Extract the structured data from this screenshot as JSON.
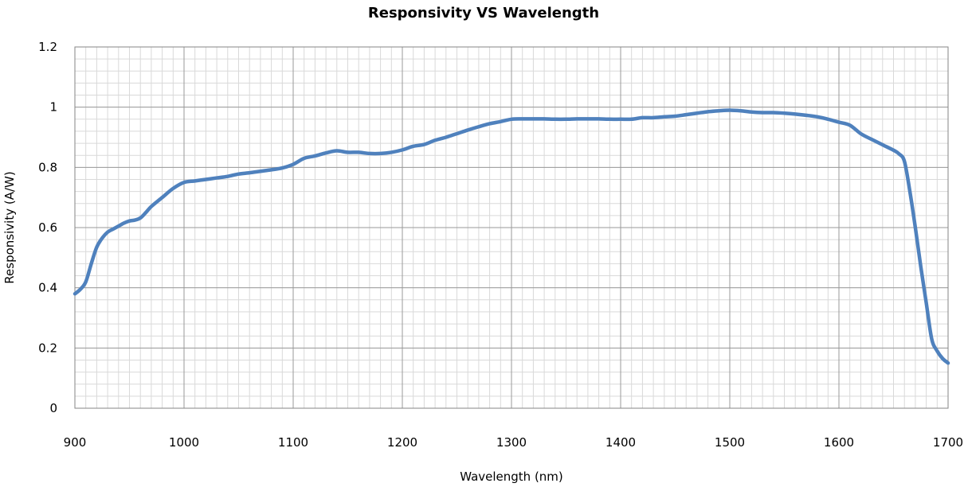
{
  "chart_data": {
    "type": "line",
    "title": "Responsivity VS Wavelength",
    "xlabel": "Wavelength (nm)",
    "ylabel": "Responsivity (A/W)",
    "xlim": [
      900,
      1700
    ],
    "ylim": [
      0,
      1.2
    ],
    "x_ticks": [
      900,
      1000,
      1100,
      1200,
      1300,
      1400,
      1500,
      1600,
      1700
    ],
    "y_ticks": [
      0,
      0.2,
      0.4,
      0.6,
      0.8,
      1,
      1.2
    ],
    "y_tick_labels": [
      "0",
      "0.2",
      "0.4",
      "0.6",
      "0.8",
      "1",
      "1.2"
    ],
    "x_minor_step": 10,
    "y_minor_step": 0.04,
    "grid": true,
    "legend": "none",
    "series": [
      {
        "color": "#4f81bd",
        "x": [
          900,
          905,
          910,
          915,
          920,
          925,
          930,
          935,
          940,
          945,
          950,
          955,
          960,
          965,
          970,
          980,
          990,
          1000,
          1010,
          1020,
          1030,
          1040,
          1050,
          1060,
          1070,
          1080,
          1090,
          1100,
          1110,
          1120,
          1130,
          1140,
          1150,
          1160,
          1170,
          1180,
          1190,
          1200,
          1210,
          1220,
          1230,
          1240,
          1250,
          1260,
          1270,
          1280,
          1290,
          1300,
          1310,
          1320,
          1330,
          1340,
          1350,
          1360,
          1370,
          1380,
          1390,
          1400,
          1410,
          1420,
          1430,
          1440,
          1450,
          1460,
          1470,
          1480,
          1490,
          1500,
          1510,
          1520,
          1530,
          1540,
          1550,
          1560,
          1570,
          1580,
          1590,
          1600,
          1610,
          1620,
          1630,
          1640,
          1650,
          1655,
          1660,
          1665,
          1670,
          1675,
          1680,
          1685,
          1690,
          1695,
          1700
        ],
        "y": [
          0.38,
          0.395,
          0.42,
          0.48,
          0.535,
          0.565,
          0.585,
          0.595,
          0.605,
          0.615,
          0.622,
          0.625,
          0.632,
          0.65,
          0.67,
          0.7,
          0.73,
          0.75,
          0.755,
          0.76,
          0.765,
          0.77,
          0.778,
          0.782,
          0.787,
          0.792,
          0.798,
          0.81,
          0.83,
          0.838,
          0.848,
          0.855,
          0.85,
          0.85,
          0.846,
          0.846,
          0.85,
          0.858,
          0.87,
          0.876,
          0.89,
          0.9,
          0.912,
          0.924,
          0.935,
          0.945,
          0.952,
          0.96,
          0.961,
          0.961,
          0.961,
          0.96,
          0.96,
          0.961,
          0.961,
          0.961,
          0.96,
          0.96,
          0.96,
          0.965,
          0.965,
          0.968,
          0.97,
          0.975,
          0.98,
          0.985,
          0.988,
          0.99,
          0.988,
          0.984,
          0.982,
          0.982,
          0.98,
          0.977,
          0.973,
          0.968,
          0.96,
          0.95,
          0.94,
          0.912,
          0.893,
          0.875,
          0.857,
          0.845,
          0.82,
          0.72,
          0.6,
          0.47,
          0.35,
          0.23,
          0.19,
          0.165,
          0.15
        ]
      }
    ]
  }
}
